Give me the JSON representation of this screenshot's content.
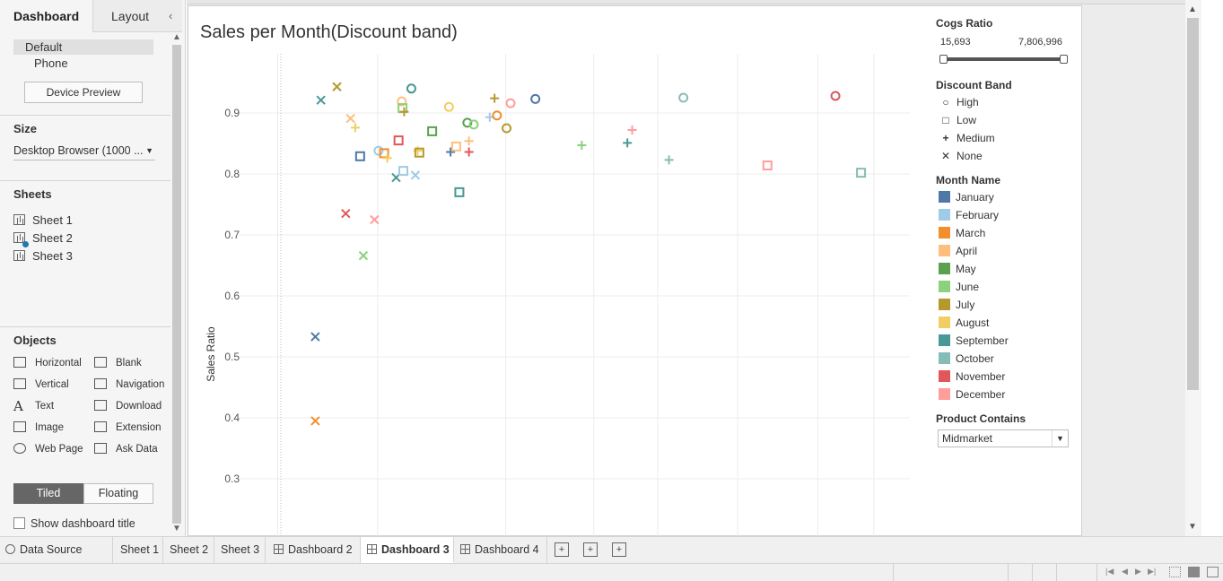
{
  "left_pane": {
    "tabs": {
      "dashboard": "Dashboard",
      "layout": "Layout",
      "collapse": "‹"
    },
    "devices": {
      "default": "Default",
      "phone": "Phone",
      "preview_button": "Device Preview"
    },
    "size": {
      "title": "Size",
      "value": "Desktop Browser (1000 ..."
    },
    "sheets": {
      "title": "Sheets",
      "items": [
        "Sheet 1",
        "Sheet 2",
        "Sheet 3"
      ]
    },
    "objects": {
      "title": "Objects",
      "items": [
        {
          "label": "Horizontal",
          "icon": "horizontal-icon"
        },
        {
          "label": "Blank",
          "icon": "blank-icon"
        },
        {
          "label": "Vertical",
          "icon": "vertical-icon"
        },
        {
          "label": "Navigation",
          "icon": "navigation-icon"
        },
        {
          "label": "Text",
          "icon": "text-icon"
        },
        {
          "label": "Download",
          "icon": "download-icon"
        },
        {
          "label": "Image",
          "icon": "image-icon"
        },
        {
          "label": "Extension",
          "icon": "extension-icon"
        },
        {
          "label": "Web Page",
          "icon": "web-page-icon"
        },
        {
          "label": "Ask Data",
          "icon": "ask-data-icon"
        }
      ]
    },
    "tiled": "Tiled",
    "floating": "Floating",
    "show_title": "Show dashboard title"
  },
  "chart_title": "Sales per Month(Discount band)",
  "legend": {
    "cogs_title": "Cogs Ratio",
    "cogs_min": "15,693",
    "cogs_max": "7,806,996",
    "discount_title": "Discount Band",
    "shapes": [
      {
        "label": "High",
        "symbol": "○"
      },
      {
        "label": "Low",
        "symbol": "□"
      },
      {
        "label": "Medium",
        "symbol": "+"
      },
      {
        "label": "None",
        "symbol": "✕"
      }
    ],
    "month_title": "Month Name",
    "months": [
      {
        "label": "January",
        "color": "#4e79a7"
      },
      {
        "label": "February",
        "color": "#a0cbe8"
      },
      {
        "label": "March",
        "color": "#f28e2b"
      },
      {
        "label": "April",
        "color": "#ffbe7d"
      },
      {
        "label": "May",
        "color": "#59a14f"
      },
      {
        "label": "June",
        "color": "#8cd17d"
      },
      {
        "label": "July",
        "color": "#b6992d"
      },
      {
        "label": "August",
        "color": "#f1ce63"
      },
      {
        "label": "September",
        "color": "#499894"
      },
      {
        "label": "October",
        "color": "#86bcb6"
      },
      {
        "label": "November",
        "color": "#e15759"
      },
      {
        "label": "December",
        "color": "#ff9d9a"
      }
    ],
    "product_title": "Product Contains",
    "product_value": "Midmarket"
  },
  "chart_data": {
    "type": "scatter",
    "title": "Sales per Month(Discount band)",
    "ylabel": "Sales Ratio",
    "xlabel": "",
    "ylim": [
      0.25,
      0.95
    ],
    "yticks": [
      "0.9",
      "0.8",
      "0.7",
      "0.6",
      "0.5",
      "0.4",
      "0.3"
    ],
    "ytick_values": [
      0.9,
      0.8,
      0.7,
      0.6,
      0.5,
      0.4,
      0.3
    ],
    "xlim": [
      0,
      850
    ],
    "xgrid": [
      60,
      185,
      345,
      455,
      535,
      635,
      735,
      805
    ],
    "grid": true,
    "points": [
      {
        "x": 107,
        "y": 0.533,
        "month": "January",
        "shape": "None"
      },
      {
        "x": 107,
        "y": 0.395,
        "month": "March",
        "shape": "None"
      },
      {
        "x": 114,
        "y": 0.921,
        "month": "September",
        "shape": "None"
      },
      {
        "x": 134,
        "y": 0.943,
        "month": "July",
        "shape": "None"
      },
      {
        "x": 145,
        "y": 0.735,
        "month": "November",
        "shape": "None"
      },
      {
        "x": 151,
        "y": 0.891,
        "month": "April",
        "shape": "None"
      },
      {
        "x": 157,
        "y": 0.876,
        "month": "August",
        "shape": "Medium"
      },
      {
        "x": 163,
        "y": 0.829,
        "month": "January",
        "shape": "Low"
      },
      {
        "x": 167,
        "y": 0.666,
        "month": "June",
        "shape": "None"
      },
      {
        "x": 181,
        "y": 0.725,
        "month": "December",
        "shape": "None"
      },
      {
        "x": 186,
        "y": 0.838,
        "month": "February",
        "shape": "High"
      },
      {
        "x": 193,
        "y": 0.834,
        "month": "March",
        "shape": "Low"
      },
      {
        "x": 197,
        "y": 0.826,
        "month": "August",
        "shape": "Medium"
      },
      {
        "x": 208,
        "y": 0.794,
        "month": "September",
        "shape": "None"
      },
      {
        "x": 211,
        "y": 0.855,
        "month": "November",
        "shape": "Low"
      },
      {
        "x": 215,
        "y": 0.919,
        "month": "April",
        "shape": "High"
      },
      {
        "x": 216,
        "y": 0.908,
        "month": "June",
        "shape": "Low"
      },
      {
        "x": 218,
        "y": 0.902,
        "month": "July",
        "shape": "Medium"
      },
      {
        "x": 217,
        "y": 0.805,
        "month": "February",
        "shape": "Low"
      },
      {
        "x": 227,
        "y": 0.94,
        "month": "September",
        "shape": "High"
      },
      {
        "x": 232,
        "y": 0.798,
        "month": "February",
        "shape": "None"
      },
      {
        "x": 235,
        "y": 0.838,
        "month": "August",
        "shape": "Medium"
      },
      {
        "x": 237,
        "y": 0.835,
        "month": "July",
        "shape": "Low"
      },
      {
        "x": 253,
        "y": 0.87,
        "month": "May",
        "shape": "Low"
      },
      {
        "x": 274,
        "y": 0.91,
        "month": "August",
        "shape": "High"
      },
      {
        "x": 276,
        "y": 0.836,
        "month": "January",
        "shape": "Medium"
      },
      {
        "x": 283,
        "y": 0.845,
        "month": "April",
        "shape": "Low"
      },
      {
        "x": 287,
        "y": 0.77,
        "month": "September",
        "shape": "Low"
      },
      {
        "x": 297,
        "y": 0.884,
        "month": "May",
        "shape": "High"
      },
      {
        "x": 299,
        "y": 0.854,
        "month": "April",
        "shape": "Medium"
      },
      {
        "x": 299,
        "y": 0.836,
        "month": "November",
        "shape": "Medium"
      },
      {
        "x": 305,
        "y": 0.881,
        "month": "June",
        "shape": "High"
      },
      {
        "x": 325,
        "y": 0.893,
        "month": "February",
        "shape": "Medium"
      },
      {
        "x": 331,
        "y": 0.924,
        "month": "July",
        "shape": "Medium"
      },
      {
        "x": 334,
        "y": 0.896,
        "month": "March",
        "shape": "High"
      },
      {
        "x": 346,
        "y": 0.875,
        "month": "July",
        "shape": "High"
      },
      {
        "x": 351,
        "y": 0.916,
        "month": "December",
        "shape": "High"
      },
      {
        "x": 382,
        "y": 0.923,
        "month": "January",
        "shape": "High"
      },
      {
        "x": 440,
        "y": 0.847,
        "month": "June",
        "shape": "Medium"
      },
      {
        "x": 497,
        "y": 0.851,
        "month": "September",
        "shape": "Medium"
      },
      {
        "x": 503,
        "y": 0.872,
        "month": "December",
        "shape": "Medium"
      },
      {
        "x": 549,
        "y": 0.823,
        "month": "October",
        "shape": "Medium"
      },
      {
        "x": 567,
        "y": 0.925,
        "month": "October",
        "shape": "High"
      },
      {
        "x": 672,
        "y": 0.814,
        "month": "December",
        "shape": "Low"
      },
      {
        "x": 757,
        "y": 0.928,
        "month": "November",
        "shape": "High"
      },
      {
        "x": 789,
        "y": 0.802,
        "month": "October",
        "shape": "Low"
      }
    ]
  },
  "bottom_tabs": {
    "data_source": "Data Source",
    "sheet1": "Sheet 1",
    "sheet2": "Sheet 2",
    "sheet3": "Sheet 3",
    "dashboard2": "Dashboard 2",
    "dashboard3": "Dashboard 3",
    "dashboard4": "Dashboard 4"
  }
}
